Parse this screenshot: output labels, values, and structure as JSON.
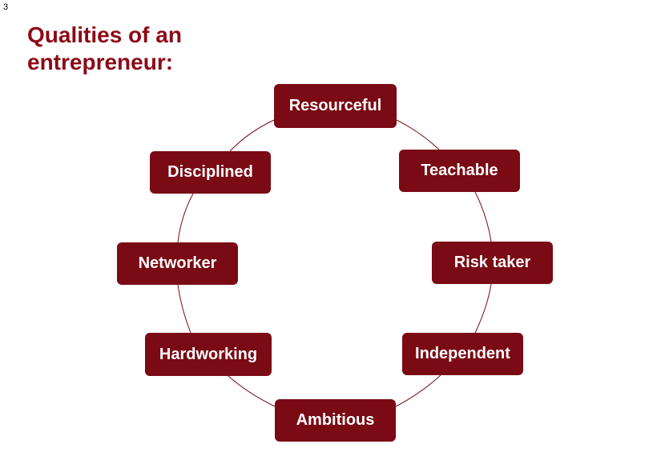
{
  "page_number": "3",
  "title_lines": [
    "Qualities of an",
    "entrepreneur:"
  ],
  "colors": {
    "title": "#8c0a17",
    "node_fill": "#7a0a14",
    "node_text": "#ffffff",
    "connector": "#7a0a14"
  },
  "nodes": [
    {
      "id": "resourceful",
      "label": "Resourceful"
    },
    {
      "id": "teachable",
      "label": "Teachable"
    },
    {
      "id": "risk-taker",
      "label": "Risk taker"
    },
    {
      "id": "independent",
      "label": "Independent"
    },
    {
      "id": "ambitious",
      "label": "Ambitious"
    },
    {
      "id": "hardworking",
      "label": "Hardworking"
    },
    {
      "id": "networker",
      "label": "Networker"
    },
    {
      "id": "disciplined",
      "label": "Disciplined"
    }
  ]
}
